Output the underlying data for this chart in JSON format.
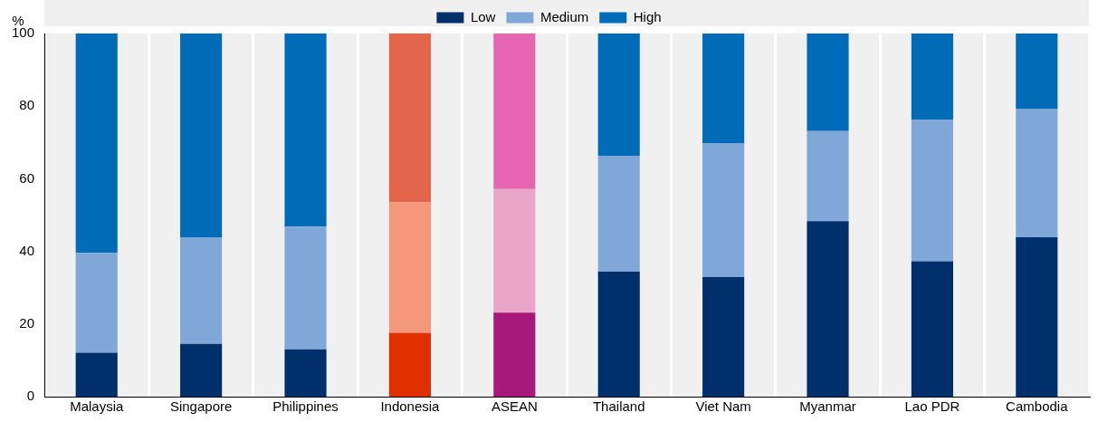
{
  "chart_data": {
    "type": "bar",
    "stacked": true,
    "ylabel": "%",
    "categories": [
      "Malaysia",
      "Singapore",
      "Philippines",
      "Indonesia",
      "ASEAN",
      "Thailand",
      "Viet Nam",
      "Myanmar",
      "Lao PDR",
      "Cambodia"
    ],
    "ylim": [
      0,
      100
    ],
    "yticks": [
      0,
      20,
      40,
      60,
      80,
      100
    ],
    "grid": "x",
    "legend": "top",
    "series": [
      {
        "name": "Low",
        "color": "#00306b",
        "colors": [
          "#00306b",
          "#00306b",
          "#00306b",
          "#e03000",
          "#a8177a",
          "#00306b",
          "#00306b",
          "#00306b",
          "#00306b",
          "#00306b"
        ],
        "values": [
          12.1,
          14.5,
          13,
          17.6,
          23.1,
          34.4,
          32.9,
          48.3,
          37.3,
          43.9
        ]
      },
      {
        "name": "Medium",
        "color": "#7fa8d9",
        "colors": [
          "#7fa8d9",
          "#7fa8d9",
          "#7fa8d9",
          "#f5977a",
          "#e8a5c8",
          "#7fa8d9",
          "#7fa8d9",
          "#7fa8d9",
          "#7fa8d9",
          "#7fa8d9"
        ],
        "values": [
          27.5,
          29.4,
          33.8,
          35.9,
          34.1,
          31.8,
          36.8,
          24.8,
          39,
          35.3
        ]
      },
      {
        "name": "High",
        "color": "#006bb6",
        "colors": [
          "#006bb6",
          "#006bb6",
          "#006bb6",
          "#e4664a",
          "#e565b0",
          "#006bb6",
          "#006bb6",
          "#006bb6",
          "#006bb6",
          "#006bb6"
        ],
        "values": [
          60.4,
          56.1,
          53.2,
          46.5,
          42.8,
          33.8,
          30.3,
          26.9,
          23.7,
          20.8
        ]
      }
    ]
  }
}
